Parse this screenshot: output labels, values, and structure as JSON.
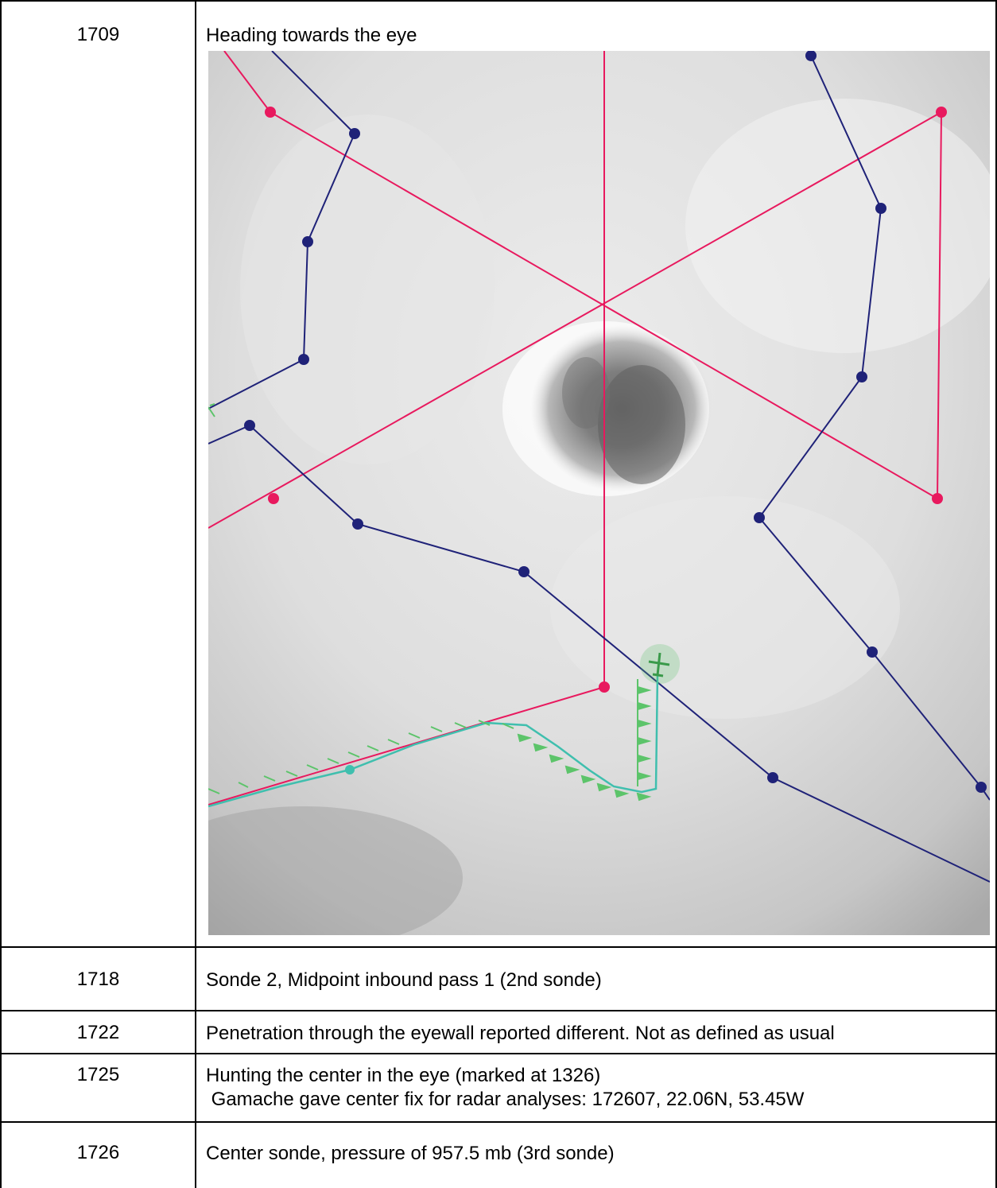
{
  "rows": [
    {
      "time": "1709",
      "desc": "Heading towards the eye"
    },
    {
      "time": "1718",
      "desc": "Sonde 2, Midpoint inbound pass 1 (2nd sonde)"
    },
    {
      "time": "1722",
      "desc": "Penetration through the eyewall reported different. Not as defined as usual"
    },
    {
      "time": "1725",
      "desc": "Hunting the center in the eye (marked at 1326)",
      "desc2": " Gamache gave center fix for radar analyses: 172607, 22.06N, 53.45W"
    },
    {
      "time": "1726",
      "desc": "Center sonde, pressure of 957.5 mb (3rd sonde)"
    }
  ],
  "image": {
    "colors": {
      "planned_track": "#e8195e",
      "flight_track": "#1f2278",
      "aircraft_track": "#3fbfae",
      "wind_barbs": "#5cc46a"
    },
    "icons": [
      "aircraft-icon"
    ]
  }
}
